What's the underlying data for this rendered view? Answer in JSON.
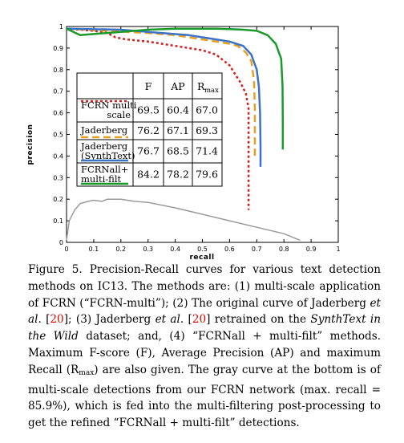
{
  "chart_data": {
    "type": "line",
    "xlabel": "recall",
    "ylabel": "precision",
    "xlim": [
      0,
      1
    ],
    "ylim": [
      0,
      1
    ],
    "x_ticks": [
      "0",
      "0.1",
      "0.2",
      "0.3",
      "0.4",
      "0.5",
      "0.6",
      "0.7",
      "0.8",
      "0.9",
      "1"
    ],
    "y_ticks": [
      "0",
      "0.1",
      "0.2",
      "0.3",
      "0.4",
      "0.5",
      "0.6",
      "0.7",
      "0.8",
      "0.9",
      "1"
    ],
    "grid": false,
    "series": [
      {
        "color": "#d32020",
        "dash": "dotted",
        "x": [
          0.0,
          0.1,
          0.15,
          0.18,
          0.22,
          0.3,
          0.4,
          0.5,
          0.55,
          0.6,
          0.62,
          0.64,
          0.66,
          0.67,
          0.67,
          0.67,
          0.67
        ],
        "y": [
          0.99,
          0.98,
          0.97,
          0.95,
          0.94,
          0.93,
          0.91,
          0.89,
          0.87,
          0.82,
          0.78,
          0.74,
          0.69,
          0.62,
          0.45,
          0.28,
          0.15
        ]
      },
      {
        "color": "#e8a020",
        "dash": "dashed",
        "x": [
          0.0,
          0.15,
          0.3,
          0.4,
          0.5,
          0.55,
          0.6,
          0.63,
          0.66,
          0.68,
          0.69,
          0.693,
          0.693,
          0.693
        ],
        "y": [
          0.99,
          0.98,
          0.97,
          0.96,
          0.94,
          0.93,
          0.92,
          0.91,
          0.88,
          0.84,
          0.75,
          0.62,
          0.5,
          0.4
        ]
      },
      {
        "color": "#3b72c8",
        "dash": "solid",
        "x": [
          0.0,
          0.2,
          0.35,
          0.45,
          0.55,
          0.6,
          0.65,
          0.68,
          0.7,
          0.708,
          0.712,
          0.714,
          0.714
        ],
        "y": [
          0.99,
          0.985,
          0.97,
          0.96,
          0.94,
          0.93,
          0.91,
          0.87,
          0.8,
          0.72,
          0.6,
          0.45,
          0.35
        ]
      },
      {
        "color": "#1a9a2a",
        "dash": "solid",
        "x": [
          0.0,
          0.05,
          0.1,
          0.2,
          0.3,
          0.4,
          0.5,
          0.55,
          0.6,
          0.65,
          0.7,
          0.74,
          0.77,
          0.79,
          0.795,
          0.796,
          0.796
        ],
        "y": [
          0.99,
          0.96,
          0.965,
          0.975,
          0.985,
          0.99,
          0.99,
          0.99,
          0.988,
          0.985,
          0.98,
          0.96,
          0.92,
          0.85,
          0.72,
          0.55,
          0.43
        ]
      },
      {
        "color": "#9a9a9a",
        "dash": "solid",
        "x": [
          0.0,
          0.01,
          0.03,
          0.05,
          0.08,
          0.1,
          0.13,
          0.15,
          0.2,
          0.25,
          0.3,
          0.4,
          0.5,
          0.6,
          0.7,
          0.8,
          0.859
        ],
        "y": [
          0.01,
          0.1,
          0.15,
          0.18,
          0.19,
          0.195,
          0.19,
          0.2,
          0.2,
          0.19,
          0.185,
          0.16,
          0.13,
          0.1,
          0.07,
          0.04,
          0.01
        ]
      }
    ],
    "legend": {
      "placement": "upper-left",
      "header": [
        "",
        "F",
        "AP",
        "R",
        "max"
      ],
      "rows": [
        {
          "label_lines": [
            "FCRN multi",
            "scale"
          ],
          "values": [
            "69.5",
            "60.4",
            "67.0"
          ]
        },
        {
          "label_lines": [
            "Jaderberg"
          ],
          "values": [
            "76.2",
            "67.1",
            "69.3"
          ]
        },
        {
          "label_lines": [
            "Jaderberg",
            "(SynthText)"
          ],
          "values": [
            "76.7",
            "68.5",
            "71.4"
          ]
        },
        {
          "label_lines": [
            "FCRNall+",
            "multi-filt"
          ],
          "values": [
            "84.2",
            "78.2",
            "79.6"
          ]
        }
      ]
    }
  },
  "caption": {
    "p1": "Figure 5.  Precision-Recall curves for various text detection methods on IC13.  The methods are: (1) multi-scale application of FCRN (“FCRN-multi”); (2) The original curve of Jaderberg ",
    "p2": "et al",
    "p3": ". [",
    "cite1": "20",
    "p4": "]; (3) Jaderberg ",
    "p5": "et al",
    "p6": ". [",
    "cite2": "20",
    "p7": "] retrained on the ",
    "p8": "SynthText in the Wild",
    "p9": " dataset; and, (4) “FCRNall + multi-filt” methods.  Maximum F-score (F), Average Precision (AP) and maximum Recall (R",
    "p10": "max",
    "p11": ") are also given. The gray curve at the bottom is of multi-scale detections from our FCRN network (max. recall = 85.9%), which is fed into the multi-filtering post-processing to get the refined “FCRNall + multi-filt” detections."
  }
}
